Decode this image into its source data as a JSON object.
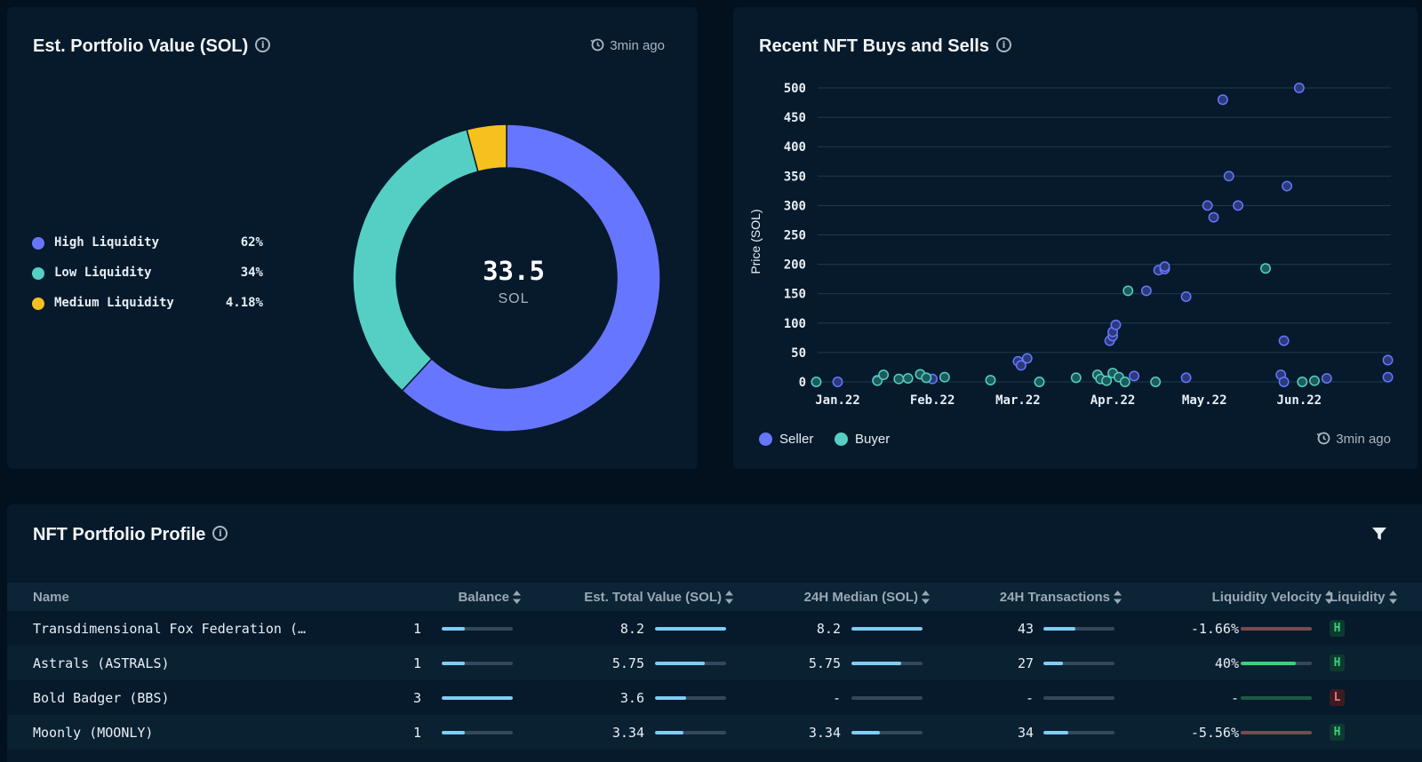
{
  "portfolio": {
    "title": "Est. Portfolio Value (SOL)",
    "updated": "3min ago",
    "total_value": "33.5",
    "unit": "SOL",
    "legend": [
      {
        "label": "High Liquidity",
        "percent": "62%",
        "value": 62,
        "color": "#6776ff"
      },
      {
        "label": "Low Liquidity",
        "percent": "34%",
        "value": 34,
        "color": "#55cfc4"
      },
      {
        "label": "Medium Liquidity",
        "percent": "4.18%",
        "value": 4.18,
        "color": "#f6c01e"
      }
    ]
  },
  "buys_sells": {
    "title": "Recent NFT Buys and Sells",
    "updated": "3min ago",
    "legend": [
      {
        "label": "Seller",
        "color": "#6776ff"
      },
      {
        "label": "Buyer",
        "color": "#55cfc4"
      }
    ]
  },
  "chart_data": {
    "type": "scatter",
    "title": "Recent NFT Buys and Sells",
    "ylabel": "Price (SOL)",
    "xlabel": "",
    "ylim": [
      0,
      500
    ],
    "yticks": [
      0,
      50,
      100,
      150,
      200,
      250,
      300,
      350,
      400,
      450,
      500
    ],
    "xlim": [
      "2021-12-25",
      "2022-06-30"
    ],
    "xticks": [
      {
        "label": "Jan.22",
        "date": "2022-01-01"
      },
      {
        "label": "Feb.22",
        "date": "2022-02-01"
      },
      {
        "label": "Mar.22",
        "date": "2022-03-01"
      },
      {
        "label": "Apr.22",
        "date": "2022-04-01"
      },
      {
        "label": "May.22",
        "date": "2022-05-01"
      },
      {
        "label": "Jun.22",
        "date": "2022-06-01"
      }
    ],
    "grid": true,
    "legend_position": "bottom-left",
    "series": [
      {
        "name": "Seller",
        "color": "#6776ff",
        "points": [
          [
            "2022-01-01",
            0
          ],
          [
            "2022-01-14",
            3
          ],
          [
            "2022-02-01",
            5
          ],
          [
            "2022-03-01",
            35
          ],
          [
            "2022-03-02",
            28
          ],
          [
            "2022-03-04",
            40
          ],
          [
            "2022-03-31",
            70
          ],
          [
            "2022-04-01",
            78
          ],
          [
            "2022-04-01",
            85
          ],
          [
            "2022-04-02",
            97
          ],
          [
            "2022-04-08",
            10
          ],
          [
            "2022-04-12",
            155
          ],
          [
            "2022-04-16",
            190
          ],
          [
            "2022-04-18",
            192
          ],
          [
            "2022-04-18",
            196
          ],
          [
            "2022-04-25",
            7
          ],
          [
            "2022-04-25",
            145
          ],
          [
            "2022-05-02",
            300
          ],
          [
            "2022-05-04",
            280
          ],
          [
            "2022-05-07",
            480
          ],
          [
            "2022-05-09",
            350
          ],
          [
            "2022-05-12",
            300
          ],
          [
            "2022-05-26",
            12
          ],
          [
            "2022-05-27",
            0
          ],
          [
            "2022-05-27",
            70
          ],
          [
            "2022-05-28",
            333
          ],
          [
            "2022-06-01",
            500
          ],
          [
            "2022-06-10",
            6
          ],
          [
            "2022-06-30",
            8
          ],
          [
            "2022-06-30",
            37
          ]
        ]
      },
      {
        "name": "Buyer",
        "color": "#55cfc4",
        "points": [
          [
            "2021-12-25",
            0
          ],
          [
            "2022-01-14",
            2
          ],
          [
            "2022-01-16",
            12
          ],
          [
            "2022-01-21",
            5
          ],
          [
            "2022-01-24",
            6
          ],
          [
            "2022-01-28",
            13
          ],
          [
            "2022-01-30",
            7
          ],
          [
            "2022-02-05",
            8
          ],
          [
            "2022-02-20",
            3
          ],
          [
            "2022-03-08",
            0
          ],
          [
            "2022-03-20",
            7
          ],
          [
            "2022-03-27",
            12
          ],
          [
            "2022-03-28",
            5
          ],
          [
            "2022-03-30",
            2
          ],
          [
            "2022-04-01",
            15
          ],
          [
            "2022-04-03",
            8
          ],
          [
            "2022-04-05",
            0
          ],
          [
            "2022-04-06",
            155
          ],
          [
            "2022-04-15",
            0
          ],
          [
            "2022-05-21",
            193
          ],
          [
            "2022-06-02",
            0
          ],
          [
            "2022-06-06",
            2
          ]
        ]
      }
    ]
  },
  "profile": {
    "title": "NFT Portfolio Profile",
    "columns": [
      "Name",
      "Balance",
      "Est. Total Value (SOL)",
      "24H Median (SOL)",
      "24H Transactions",
      "Liquidity Velocity",
      "Liquidity"
    ],
    "rows": [
      {
        "name": "Transdimensional Fox Federation (…",
        "balance": "1",
        "balance_frac": 0.33,
        "total_value": "8.2",
        "total_frac": 1.0,
        "median": "8.2",
        "median_frac": 1.0,
        "transactions": "43",
        "tx_frac": 0.45,
        "velocity": "-1.66%",
        "velocity_frac": 1.0,
        "velocity_color": "#7a4a50",
        "liquidity": "H"
      },
      {
        "name": "Astrals (ASTRALS)",
        "balance": "1",
        "balance_frac": 0.33,
        "total_value": "5.75",
        "total_frac": 0.7,
        "median": "5.75",
        "median_frac": 0.7,
        "transactions": "27",
        "tx_frac": 0.28,
        "velocity": "40%",
        "velocity_frac": 0.78,
        "velocity_color": "#3bd07b",
        "liquidity": "H"
      },
      {
        "name": "Bold Badger (BBS)",
        "balance": "3",
        "balance_frac": 1.0,
        "total_value": "3.6",
        "total_frac": 0.44,
        "median": "-",
        "median_frac": 0,
        "transactions": "-",
        "tx_frac": 0,
        "velocity": "-",
        "velocity_frac": 1.0,
        "velocity_color": "#1e5a44",
        "liquidity": "L"
      },
      {
        "name": "Moonly (MOONLY)",
        "balance": "1",
        "balance_frac": 0.33,
        "total_value": "3.34",
        "total_frac": 0.4,
        "median": "3.34",
        "median_frac": 0.4,
        "transactions": "34",
        "tx_frac": 0.35,
        "velocity": "-5.56%",
        "velocity_frac": 1.0,
        "velocity_color": "#7a4a50",
        "liquidity": "H"
      }
    ]
  },
  "colors": {
    "background": "#03101d",
    "panel": "#061a2b",
    "bar_fill": "#7fcdf4",
    "bar_track": "#33485a"
  }
}
